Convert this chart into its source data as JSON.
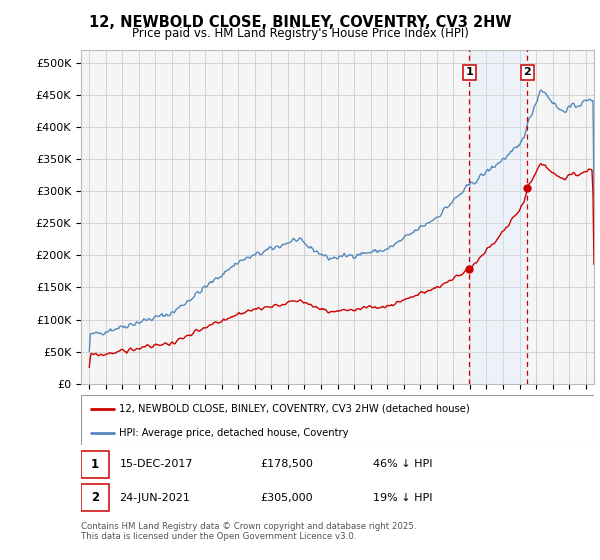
{
  "title": "12, NEWBOLD CLOSE, BINLEY, COVENTRY, CV3 2HW",
  "subtitle": "Price paid vs. HM Land Registry's House Price Index (HPI)",
  "legend_label_red": "12, NEWBOLD CLOSE, BINLEY, COVENTRY, CV3 2HW (detached house)",
  "legend_label_blue": "HPI: Average price, detached house, Coventry",
  "point1_label": "1",
  "point1_date": "15-DEC-2017",
  "point1_price": "£178,500",
  "point1_hpi": "46% ↓ HPI",
  "point1_x": 2017.958,
  "point1_y": 178500,
  "point2_label": "2",
  "point2_date": "24-JUN-2021",
  "point2_price": "£305,000",
  "point2_hpi": "19% ↓ HPI",
  "point2_x": 2021.479,
  "point2_y": 305000,
  "footer": "Contains HM Land Registry data © Crown copyright and database right 2025.\nThis data is licensed under the Open Government Licence v3.0.",
  "xlim": [
    1994.5,
    2025.5
  ],
  "ylim": [
    0,
    520000
  ],
  "yticks": [
    0,
    50000,
    100000,
    150000,
    200000,
    250000,
    300000,
    350000,
    400000,
    450000,
    500000
  ],
  "ytick_labels": [
    "£0",
    "£50K",
    "£100K",
    "£150K",
    "£200K",
    "£250K",
    "£300K",
    "£350K",
    "£400K",
    "£450K",
    "£500K"
  ],
  "xticks": [
    1995,
    1996,
    1997,
    1998,
    1999,
    2000,
    2001,
    2002,
    2003,
    2004,
    2005,
    2006,
    2007,
    2008,
    2009,
    2010,
    2011,
    2012,
    2013,
    2014,
    2015,
    2016,
    2017,
    2018,
    2019,
    2020,
    2021,
    2022,
    2023,
    2024,
    2025
  ],
  "color_red": "#cc0000",
  "color_blue": "#5588bb",
  "color_shaded": "#ddeeff",
  "bg_color": "#f5f5f5",
  "grid_color": "#cccccc",
  "vline_color": "#cc0000"
}
